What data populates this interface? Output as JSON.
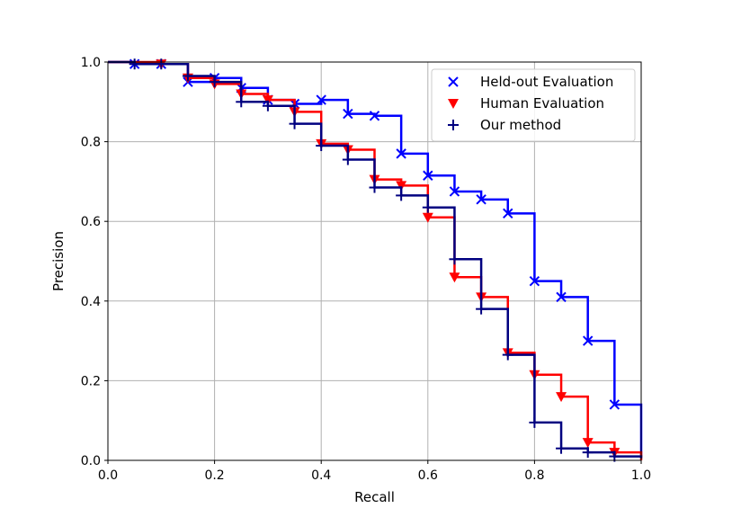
{
  "chart_data": {
    "type": "line",
    "title": "",
    "xlabel": "Recall",
    "ylabel": "Precision",
    "xlim": [
      0.0,
      1.0
    ],
    "ylim": [
      0.0,
      1.0
    ],
    "xticks": [
      "0.0",
      "0.2",
      "0.4",
      "0.6",
      "0.8",
      "1.0"
    ],
    "yticks": [
      "0.0",
      "0.2",
      "0.4",
      "0.6",
      "0.8",
      "1.0"
    ],
    "grid": true,
    "legend_position": "top-right",
    "series": [
      {
        "name": "Held-out Evaluation",
        "color": "#0000ff",
        "marker": "x",
        "x": [
          0.0,
          0.05,
          0.1,
          0.15,
          0.2,
          0.25,
          0.3,
          0.35,
          0.4,
          0.45,
          0.5,
          0.55,
          0.6,
          0.65,
          0.7,
          0.75,
          0.8,
          0.85,
          0.9,
          0.95,
          1.0
        ],
        "y": [
          1.0,
          0.995,
          0.995,
          0.95,
          0.96,
          0.935,
          0.905,
          0.895,
          0.905,
          0.87,
          0.865,
          0.77,
          0.715,
          0.675,
          0.655,
          0.62,
          0.45,
          0.41,
          0.3,
          0.14,
          0.01
        ],
        "markers_x": [
          0.05,
          0.1,
          0.15,
          0.2,
          0.25,
          0.3,
          0.35,
          0.4,
          0.45,
          0.5,
          0.55,
          0.6,
          0.65,
          0.7,
          0.75,
          0.8,
          0.85,
          0.9,
          0.95
        ],
        "markers_y": [
          0.995,
          0.995,
          0.95,
          0.96,
          0.935,
          0.905,
          0.895,
          0.905,
          0.87,
          0.865,
          0.77,
          0.715,
          0.675,
          0.655,
          0.62,
          0.45,
          0.41,
          0.3,
          0.14
        ]
      },
      {
        "name": "Human Evaluation",
        "color": "#ff0000",
        "marker": "v",
        "x": [
          0.0,
          0.1,
          0.15,
          0.2,
          0.25,
          0.3,
          0.35,
          0.4,
          0.45,
          0.5,
          0.55,
          0.6,
          0.65,
          0.7,
          0.75,
          0.8,
          0.85,
          0.9,
          0.95,
          1.0
        ],
        "y": [
          1.0,
          0.995,
          0.96,
          0.945,
          0.92,
          0.905,
          0.875,
          0.795,
          0.78,
          0.705,
          0.69,
          0.61,
          0.46,
          0.41,
          0.27,
          0.215,
          0.16,
          0.045,
          0.02,
          0.0
        ],
        "markers_x": [
          0.1,
          0.15,
          0.2,
          0.25,
          0.3,
          0.35,
          0.4,
          0.45,
          0.5,
          0.55,
          0.6,
          0.65,
          0.7,
          0.75,
          0.8,
          0.85,
          0.9,
          0.95
        ],
        "markers_y": [
          0.995,
          0.96,
          0.945,
          0.92,
          0.905,
          0.875,
          0.795,
          0.78,
          0.705,
          0.69,
          0.61,
          0.46,
          0.41,
          0.27,
          0.215,
          0.16,
          0.045,
          0.02
        ]
      },
      {
        "name": "Our method",
        "color": "#000080",
        "marker": "+",
        "x": [
          0.0,
          0.05,
          0.1,
          0.15,
          0.2,
          0.25,
          0.3,
          0.35,
          0.4,
          0.45,
          0.5,
          0.55,
          0.6,
          0.65,
          0.7,
          0.75,
          0.8,
          0.85,
          0.9,
          0.95,
          1.0
        ],
        "y": [
          1.0,
          0.995,
          0.995,
          0.965,
          0.95,
          0.9,
          0.89,
          0.845,
          0.79,
          0.755,
          0.685,
          0.665,
          0.635,
          0.505,
          0.38,
          0.265,
          0.095,
          0.03,
          0.02,
          0.01,
          0.005
        ],
        "markers_x": [
          0.05,
          0.1,
          0.15,
          0.2,
          0.25,
          0.3,
          0.35,
          0.4,
          0.45,
          0.5,
          0.55,
          0.6,
          0.65,
          0.7,
          0.75,
          0.8,
          0.85,
          0.9,
          0.95
        ],
        "markers_y": [
          0.995,
          0.995,
          0.965,
          0.95,
          0.9,
          0.89,
          0.845,
          0.79,
          0.755,
          0.685,
          0.665,
          0.635,
          0.505,
          0.38,
          0.265,
          0.095,
          0.03,
          0.02,
          0.01
        ]
      }
    ]
  }
}
